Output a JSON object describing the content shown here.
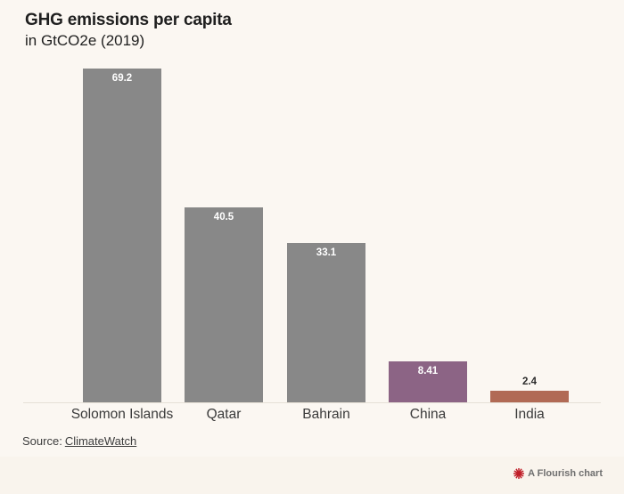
{
  "header": {
    "title": "GHG emissions per capita",
    "subtitle": "in GtCO2e (2019)"
  },
  "chart_data": {
    "type": "bar",
    "title": "GHG emissions per capita",
    "subtitle": "in GtCO2e (2019)",
    "categories": [
      "Solomon Islands",
      "Qatar",
      "Bahrain",
      "China",
      "India"
    ],
    "values": [
      69.2,
      40.5,
      33.1,
      8.41,
      2.4
    ],
    "value_labels": [
      "69.2",
      "40.5",
      "33.1",
      "8.41",
      "2.4"
    ],
    "bar_colors": [
      "#888888",
      "#888888",
      "#888888",
      "#8c6485",
      "#b16a55"
    ],
    "xlabel": "",
    "ylabel": "",
    "ylim": [
      0,
      69.2
    ],
    "grid": false,
    "legend": false,
    "orientation": "vertical"
  },
  "footer": {
    "source_prefix": "Source:",
    "source_link": "ClimateWatch",
    "credit": "A Flourish chart"
  },
  "colors": {
    "background": "#fbf7f2",
    "footer_background": "#f9f4ed",
    "axis_line": "#e6e0d7",
    "title_text": "#1f1f1f",
    "label_text": "#3a3a3a",
    "source_text": "#3d3d3d",
    "credit_text": "#6f6f6f",
    "credit_red": "#c01e28",
    "bar_default": "#888888",
    "bar_china": "#8c6485",
    "bar_india": "#b16a55"
  }
}
